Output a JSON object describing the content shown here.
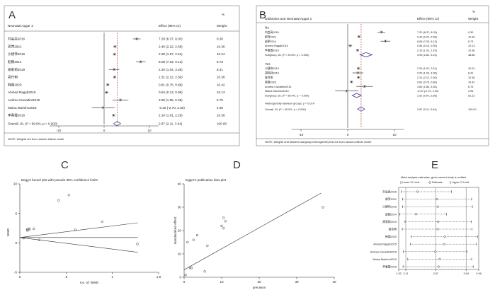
{
  "chart_data": [
    {
      "panel": "A",
      "type": "forest",
      "column_header": "Neonatal Apgar 1'",
      "effect_header": "Effect (95% CI)",
      "weight_header_line1": "%",
      "weight_header_line2": "Weight",
      "studies": [
        {
          "name": "刘会高2016",
          "effect": 7.2,
          "lo": 6.37,
          "hi": 8.03,
          "ci_text": "7.20 (6.37, 8.03)",
          "weight": "9.30"
        },
        {
          "name": "郭萍2021",
          "effect": 2.4,
          "lo": 2.22,
          "hi": 2.58,
          "ci_text": "2.40 (2.22, 2.58)",
          "weight": "10.36"
        },
        {
          "name": "沙建伟2016",
          "effect": 2.29,
          "lo": 1.97,
          "hi": 2.61,
          "ci_text": "2.29 (1.97, 2.61)",
          "weight": "10.24"
        },
        {
          "name": "赵朝2014",
          "effect": 8.08,
          "lo": 7.03,
          "hi": 9.13,
          "ci_text": "8.08 (7.03, 9.13)",
          "weight": "8.73"
        },
        {
          "name": "胡莉莉2019",
          "effect": 2.2,
          "lo": 1.04,
          "hi": 3.36,
          "ci_text": "2.20 (1.04, 3.36)",
          "weight": "8.41"
        },
        {
          "name": "袁伶俐",
          "effect": 2.31,
          "lo": 2.12,
          "hi": 2.5,
          "ci_text": "2.31 (2.12, 2.50)",
          "weight": "10.36"
        },
        {
          "name": "韩璐2020",
          "effect": 0.81,
          "lo": 0.76,
          "hi": 0.86,
          "ci_text": "0.81 (0.76, 0.86)",
          "weight": "10.42"
        },
        {
          "name": "Ahmed Ragab2015",
          "effect": 0.54,
          "lo": 0.13,
          "hi": 0.95,
          "ci_text": "0.54 (0.13, 0.95)",
          "weight": "10.13"
        },
        {
          "name": "Andrea Ciavattini2015",
          "effect": 3.6,
          "lo": 1.85,
          "hi": 5.35,
          "ci_text": "3.60 (1.85, 5.35)",
          "weight": "6.75"
        },
        {
          "name": "Maina Marinho2019",
          "effect": -0.2,
          "lo": -2.7,
          "hi": 2.3,
          "ci_text": "-0.20 (-2.70, 2.30)",
          "weight": "4.95"
        },
        {
          "name": "李春霞2016",
          "effect": 2.1,
          "lo": 1.91,
          "hi": 2.29,
          "ci_text": "2.10 (1.91, 2.29)",
          "weight": "10.36"
        }
      ],
      "overall": {
        "label": "Overall, DL (I² = 99.0%, p = 0.000)",
        "effect": 2.87,
        "lo": 2.11,
        "hi": 3.64,
        "ci_text": "2.87 (2.11, 3.64)",
        "weight": "100.00"
      },
      "xticks": [
        "-10",
        "0",
        "10"
      ],
      "xlim": [
        -14,
        14
      ],
      "note": "NOTE: Weights are from random-effects model"
    },
    {
      "panel": "B",
      "type": "forest",
      "column_header": "antibiotics and Neonatal Apgar 1'",
      "effect_header": "Effect (95% CI)",
      "weight_header_line1": "%",
      "weight_header_line2": "Weight",
      "groups": [
        {
          "label": "No",
          "studies": [
            {
              "name": "刘会高2016",
              "effect": 7.2,
              "lo": 6.37,
              "hi": 8.03,
              "ci_text": "7.20 (6.37, 8.03)",
              "weight": "9.30"
            },
            {
              "name": "郭萍2021",
              "effect": 2.4,
              "lo": 2.22,
              "hi": 2.58,
              "ci_text": "2.40 (2.22, 2.58)",
              "weight": "10.36"
            },
            {
              "name": "赵朝2014",
              "effect": 8.08,
              "lo": 7.03,
              "hi": 9.13,
              "ci_text": "8.08 (7.03, 9.13)",
              "weight": "8.73"
            },
            {
              "name": "Ahmed Ragab2015",
              "effect": 0.54,
              "lo": 0.13,
              "hi": 0.95,
              "ci_text": "0.54 (0.13, 0.95)",
              "weight": "10.13"
            },
            {
              "name": "李春霞2016",
              "effect": 2.1,
              "lo": 1.91,
              "hi": 2.29,
              "ci_text": "2.10 (1.91, 2.29)",
              "weight": "10.36"
            }
          ],
          "subgroup": {
            "label": "Subgroup, DL (I² = 99.6%, p = 0.000)",
            "effect": 3.93,
            "lo": 2.62,
            "hi": 5.24,
            "ci_text": "3.93 (2.62, 5.24)",
            "weight": "48.88"
          }
        },
        {
          "label": "Yes",
          "studies": [
            {
              "name": "沙建伟2016",
              "effect": 2.29,
              "lo": 1.97,
              "hi": 2.61,
              "ci_text": "2.29 (1.97, 2.61)",
              "weight": "10.24"
            },
            {
              "name": "胡莉莉2019",
              "effect": 2.2,
              "lo": 1.04,
              "hi": 3.36,
              "ci_text": "2.20 (1.04, 3.36)",
              "weight": "8.41"
            },
            {
              "name": "袁伶俐",
              "effect": 2.31,
              "lo": 2.12,
              "hi": 2.5,
              "ci_text": "2.31 (2.12, 2.50)",
              "weight": "10.36"
            },
            {
              "name": "韩璐2020",
              "effect": 0.81,
              "lo": 0.76,
              "hi": 0.86,
              "ci_text": "0.81 (0.76, 0.86)",
              "weight": "10.42"
            },
            {
              "name": "Andrea Ciavattini2015",
              "effect": 3.6,
              "lo": 1.85,
              "hi": 5.35,
              "ci_text": "3.60 (1.85, 5.35)",
              "weight": "6.75"
            },
            {
              "name": "Maina Marinho2019",
              "effect": -0.2,
              "lo": -2.7,
              "hi": 2.3,
              "ci_text": "-0.20 (-2.70, 2.30)",
              "weight": "4.95"
            }
          ],
          "subgroup": {
            "label": "Subgroup, DL (I² = 98.4%, p = 0.000)",
            "effect": 1.91,
            "lo": 0.97,
            "hi": 2.86,
            "ci_text": "1.91 (0.97, 2.86)",
            "weight": "51.12"
          }
        }
      ],
      "heterogeneity": "Heterogeneity between groups: p = 0.014",
      "overall": {
        "label": "Overall, DL (I² = 99.0%, p = 0.000)",
        "effect": 2.87,
        "lo": 2.11,
        "hi": 3.64,
        "ci_text": "2.87 (2.11, 3.64)",
        "weight": "100.00"
      },
      "xticks": [
        "-10",
        "0",
        "10"
      ],
      "xlim": [
        -14,
        14
      ],
      "note": "NOTE: Weights and between-subgroup heterogeneity test are from random-effects model"
    },
    {
      "panel": "C",
      "type": "scatter",
      "title": "Begg's funnel plot with pseudo 95% confidence limits",
      "xlabel": "s.e. of: WMD",
      "ylabel": "WMD",
      "xlim": [
        0,
        1.5
      ],
      "ylim": [
        -5,
        10
      ],
      "xticks": [
        "0",
        ".5",
        "1",
        "1.5"
      ],
      "yticks": [
        "-5",
        "0",
        "5",
        "10"
      ],
      "center": 0.9,
      "points": [
        [
          0.04,
          0.8
        ],
        [
          0.08,
          2.1
        ],
        [
          0.08,
          2.3
        ],
        [
          0.1,
          2.4
        ],
        [
          0.1,
          2.2
        ],
        [
          0.15,
          2.4
        ],
        [
          0.21,
          0.5
        ],
        [
          0.42,
          7.2
        ],
        [
          0.53,
          8.1
        ],
        [
          0.6,
          2.2
        ],
        [
          0.89,
          3.6
        ],
        [
          1.27,
          -0.2
        ]
      ]
    },
    {
      "panel": "D",
      "type": "scatter",
      "title": "Egger's publication bias plot",
      "xlabel": "precision",
      "ylabel": "standardized effect",
      "xlim": [
        0,
        40
      ],
      "ylim": [
        0,
        40
      ],
      "xticks": [
        "0",
        "10",
        "20",
        "30",
        "40"
      ],
      "yticks": [
        "0",
        "10",
        "20",
        "30",
        "40"
      ],
      "fit": {
        "intercept": 3.2,
        "slope": 0.9
      },
      "points": [
        [
          0.4,
          1
        ],
        [
          0.9,
          15
        ],
        [
          1.6,
          4
        ],
        [
          2,
          4
        ],
        [
          2.5,
          16
        ],
        [
          3.5,
          18
        ],
        [
          5.5,
          2.5
        ],
        [
          6.2,
          13.5
        ],
        [
          10,
          22
        ],
        [
          10.5,
          25.5
        ],
        [
          10.5,
          21
        ],
        [
          11,
          24
        ],
        [
          37,
          30
        ]
      ]
    },
    {
      "panel": "E",
      "type": "influence",
      "title": "Meta-analysis estimates, given named study is omitted",
      "legend": [
        "Lower CI Limit",
        "Estimate",
        "Upper CI Limit"
      ],
      "xlim": [
        1.93,
        3.96
      ],
      "xticks": [
        "1.93",
        "2.11",
        "2.87",
        "3.64",
        "3.96"
      ],
      "ref_lines": [
        2.11,
        2.87,
        3.64
      ],
      "rows": [
        {
          "name": "刘会高2016",
          "lo": 2.0,
          "est": 2.41,
          "hi": 3.27
        },
        {
          "name": "郭萍2021",
          "lo": 2.03,
          "est": 2.9,
          "hi": 3.78
        },
        {
          "name": "沙建伟2016",
          "lo": 2.03,
          "est": 2.92,
          "hi": 3.8
        },
        {
          "name": "赵朝2014",
          "lo": 1.96,
          "est": 2.37,
          "hi": 3.14
        },
        {
          "name": "胡莉莉2019",
          "lo": 2.09,
          "est": 2.93,
          "hi": 3.77
        },
        {
          "name": "袁伶俐",
          "lo": 2.02,
          "est": 2.92,
          "hi": 3.79
        },
        {
          "name": "韩璐2020",
          "lo": 2.25,
          "est": 3.1,
          "hi": 3.93
        },
        {
          "name": "Ahmed Ragab2015",
          "lo": 2.23,
          "est": 3.08,
          "hi": 3.9
        },
        {
          "name": "Andrea Ciavattini2015",
          "lo": 2.05,
          "est": 2.86,
          "hi": 3.66
        },
        {
          "name": "Maina Marinho2019",
          "lo": 2.16,
          "est": 2.97,
          "hi": 3.78
        },
        {
          "name": "李春霞2016",
          "lo": 2.04,
          "est": 2.94,
          "hi": 3.82
        }
      ]
    }
  ]
}
